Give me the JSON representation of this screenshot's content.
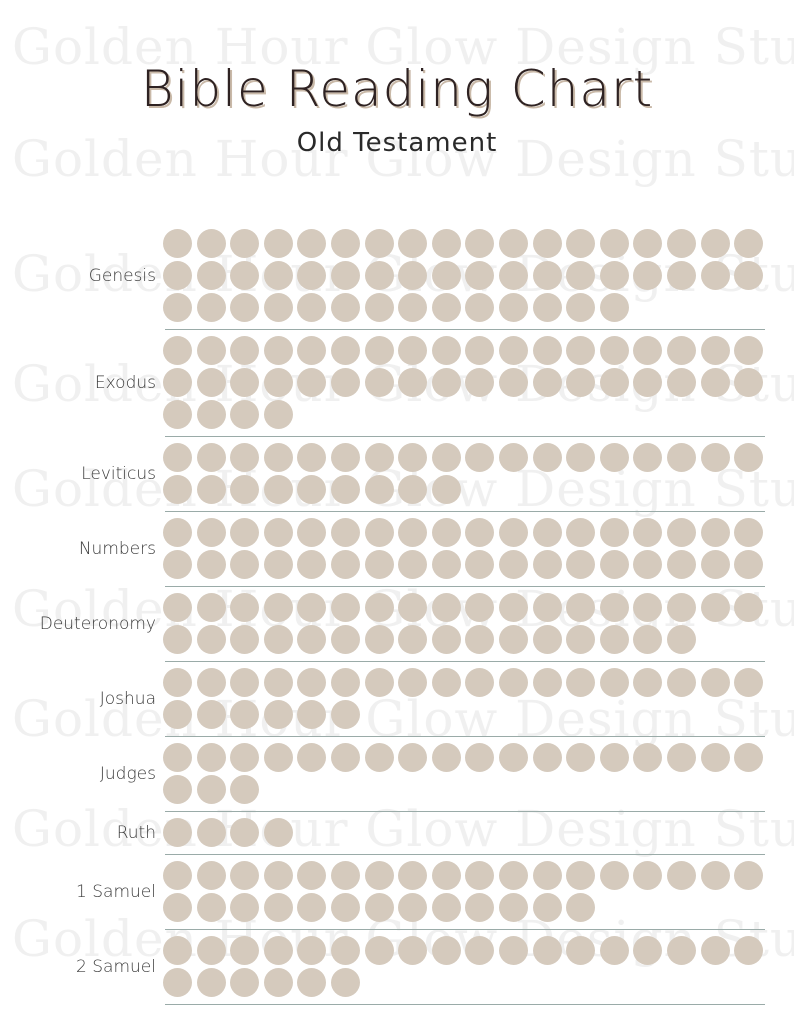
{
  "header": {
    "title": "Bible Reading Chart",
    "subtitle": "Old Testament"
  },
  "watermark": "Golden Hour Glow Design Studio",
  "colors": {
    "dot": "#d5cabd",
    "divider": "#9aaba8",
    "title": "#2e2222"
  },
  "books": [
    {
      "name": "Genesis",
      "chapters": 50
    },
    {
      "name": "Exodus",
      "chapters": 40
    },
    {
      "name": "Leviticus",
      "chapters": 27
    },
    {
      "name": "Numbers",
      "chapters": 36
    },
    {
      "name": "Deuteronomy",
      "chapters": 34
    },
    {
      "name": "Joshua",
      "chapters": 24
    },
    {
      "name": "Judges",
      "chapters": 21
    },
    {
      "name": "Ruth",
      "chapters": 4
    },
    {
      "name": "1 Samuel",
      "chapters": 31
    },
    {
      "name": "2 Samuel",
      "chapters": 24
    }
  ]
}
